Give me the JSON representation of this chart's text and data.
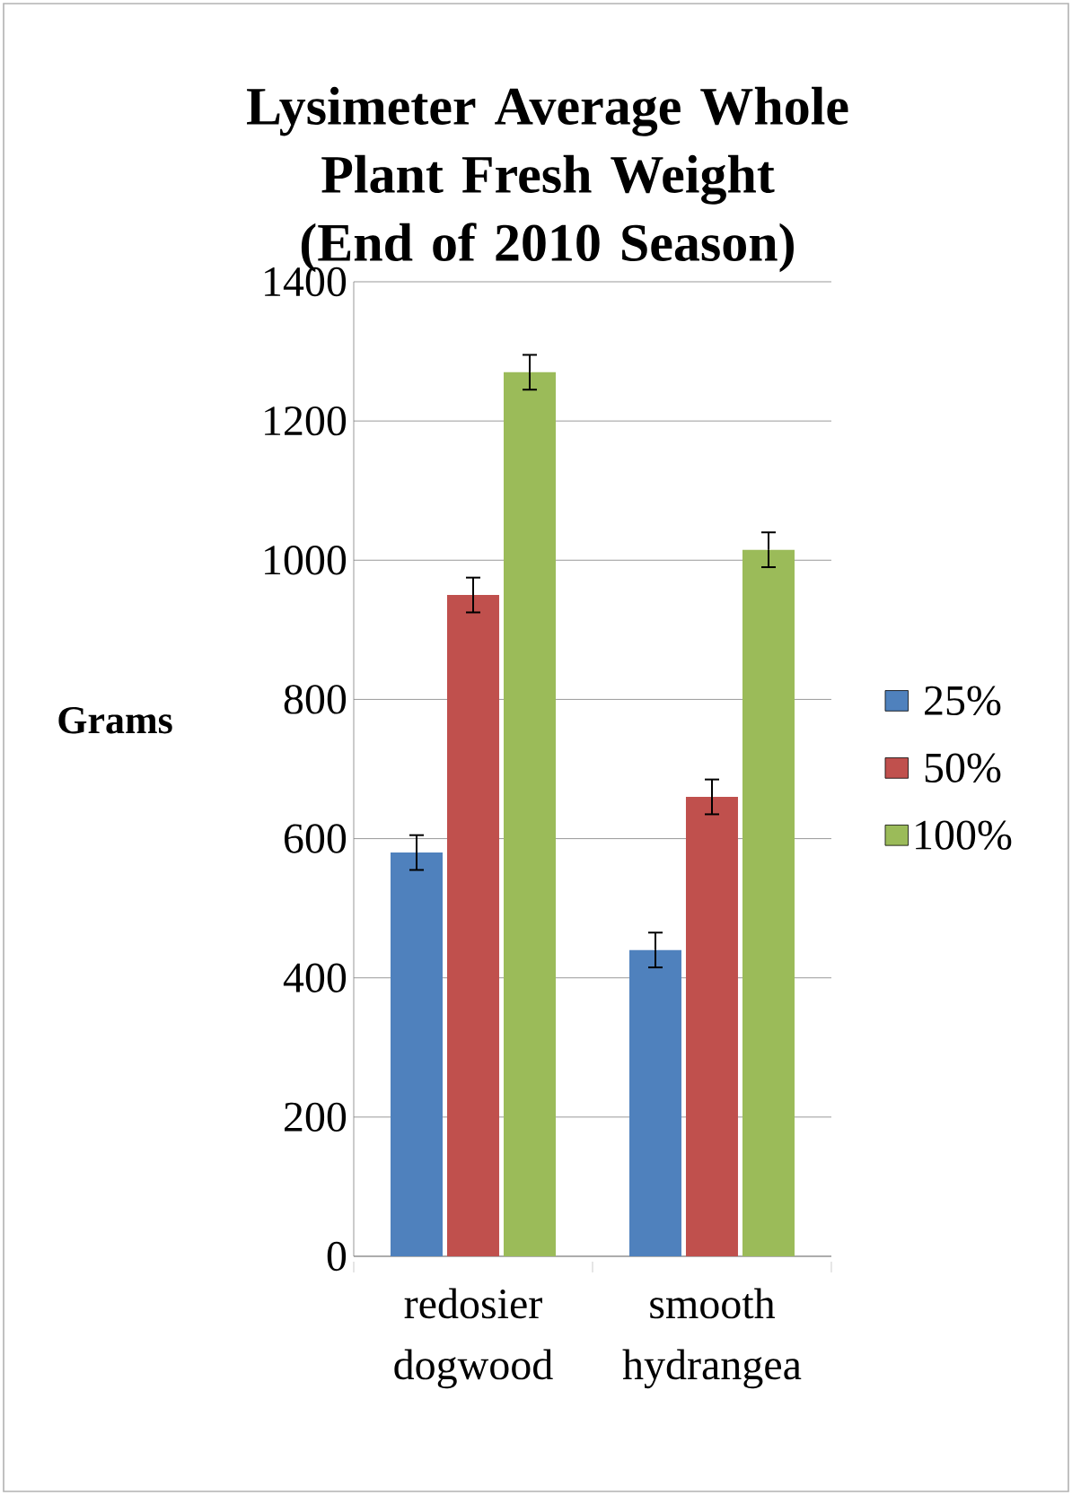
{
  "chart_data": {
    "type": "bar",
    "title": "Lysimeter Average Whole Plant Fresh Weight (End of 2010 Season)",
    "ylabel": "Grams",
    "categories": [
      "redosier dogwood",
      "smooth hydrangea"
    ],
    "series": [
      {
        "name": "25%",
        "color": "#4f81bd",
        "values": [
          580,
          440
        ],
        "errors": [
          25,
          25
        ]
      },
      {
        "name": "50%",
        "color": "#c0504d",
        "values": [
          950,
          660
        ],
        "errors": [
          25,
          25
        ]
      },
      {
        "name": "100%",
        "color": "#9bbb59",
        "values": [
          1270,
          1015
        ],
        "errors": [
          25,
          25
        ]
      }
    ],
    "ylim": [
      0,
      1400
    ],
    "yticks": [
      0,
      200,
      400,
      600,
      800,
      1000,
      1200,
      1400
    ],
    "grid": "y",
    "legend": "right"
  }
}
